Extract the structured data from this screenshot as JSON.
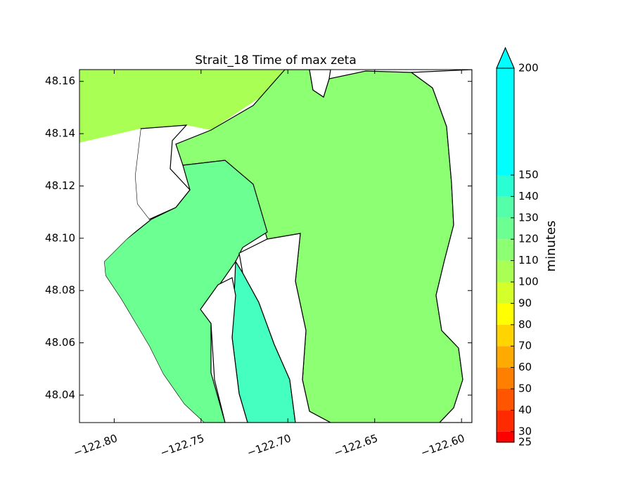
{
  "chart_data": {
    "type": "contour-map",
    "title": "Strait_18 Time of max zeta",
    "xlim": [
      -122.82,
      -122.594
    ],
    "ylim": [
      48.0295,
      48.1645
    ],
    "xticks": [
      {
        "value": -122.8,
        "label": "−122.80"
      },
      {
        "value": -122.75,
        "label": "−122.75"
      },
      {
        "value": -122.7,
        "label": "−122.70"
      },
      {
        "value": -122.65,
        "label": "−122.65"
      },
      {
        "value": -122.6,
        "label": "−122.60"
      }
    ],
    "yticks": [
      48.04,
      48.06,
      48.08,
      {
        "value": 48.1,
        "label": "48.10"
      },
      48.12,
      48.14,
      48.16
    ],
    "colorbar": {
      "label": "minutes",
      "lim": [
        25,
        200
      ],
      "ticks": [
        25,
        30,
        40,
        50,
        60,
        70,
        80,
        90,
        100,
        110,
        120,
        130,
        140,
        150,
        200
      ],
      "colors": [
        "#ff0000",
        "#ff2a00",
        "#ff5500",
        "#ff7f00",
        "#ffaa00",
        "#ffd400",
        "#ffff00",
        "#d4ff2a",
        "#aaff55",
        "#8cff73",
        "#6cff91",
        "#55ffaa",
        "#2affd4",
        "#00ffff"
      ],
      "extend_color": "#00ffff"
    }
  }
}
